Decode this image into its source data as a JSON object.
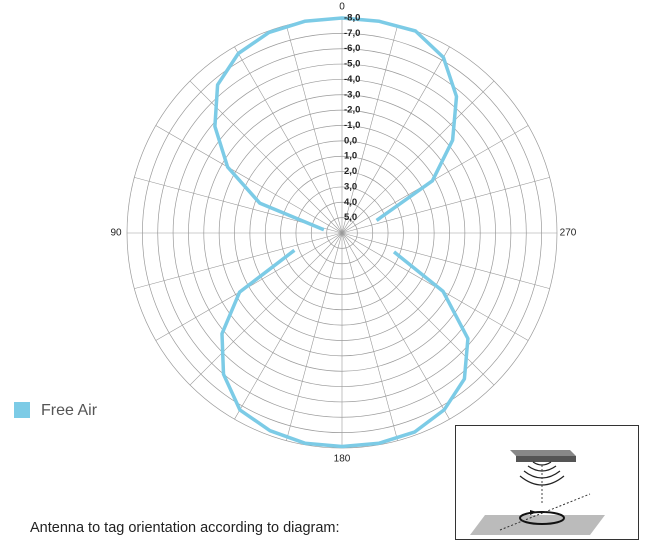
{
  "chart_data": {
    "type": "polar_line",
    "angles": [
      110,
      120,
      130,
      140,
      150,
      160,
      170,
      180,
      190,
      200,
      210,
      220,
      230,
      240,
      250,
      260,
      270,
      280,
      290,
      300,
      310,
      320,
      330,
      340,
      350,
      0,
      10,
      20,
      30,
      40,
      50,
      60,
      70,
      80,
      90,
      100
    ],
    "series": [
      {
        "name": "Free Air",
        "color": "#7ccbe6",
        "values": [
          2.7,
          -1.7,
          -4.2,
          -6.0,
          -7.3,
          -7.7,
          -7.9,
          -7.9,
          -7.9,
          -7.8,
          -7.3,
          -6.4,
          -4.7,
          -1.6,
          2.4,
          null,
          null,
          null,
          3.6,
          -0.8,
          -3.4,
          -5.6,
          -7.2,
          -8.0,
          -8.0,
          -8.0,
          -8.0,
          -7.9,
          -7.5,
          -6.6,
          -4.8,
          -2.6,
          0.3,
          4.8,
          null,
          null
        ]
      }
    ],
    "rlim": [
      6,
      -8
    ],
    "rticks": [
      {
        "value": -8,
        "label": "-8,0"
      },
      {
        "value": -7,
        "label": "-7,0"
      },
      {
        "value": -6,
        "label": "-6,0"
      },
      {
        "value": -5,
        "label": "-5,0"
      },
      {
        "value": -4,
        "label": "-4,0"
      },
      {
        "value": -3,
        "label": "-3,0"
      },
      {
        "value": -2,
        "label": "-2,0"
      },
      {
        "value": -1,
        "label": "-1,0"
      },
      {
        "value": 0,
        "label": "0,0"
      },
      {
        "value": 1,
        "label": "1,0"
      },
      {
        "value": 2,
        "label": "2,0"
      },
      {
        "value": 3,
        "label": "3,0"
      },
      {
        "value": 4,
        "label": "4,0"
      },
      {
        "value": 5,
        "label": "5,0"
      }
    ],
    "thetaticks": [
      0,
      90,
      180,
      270
    ],
    "theta_gridlines": [
      0,
      15,
      30,
      45,
      60,
      75,
      90,
      105,
      120,
      135,
      150,
      165,
      180,
      195,
      210,
      225,
      240,
      255,
      270,
      285,
      300,
      315,
      330,
      345
    ],
    "caption": "Antenna to tag orientation according to diagram:"
  }
}
